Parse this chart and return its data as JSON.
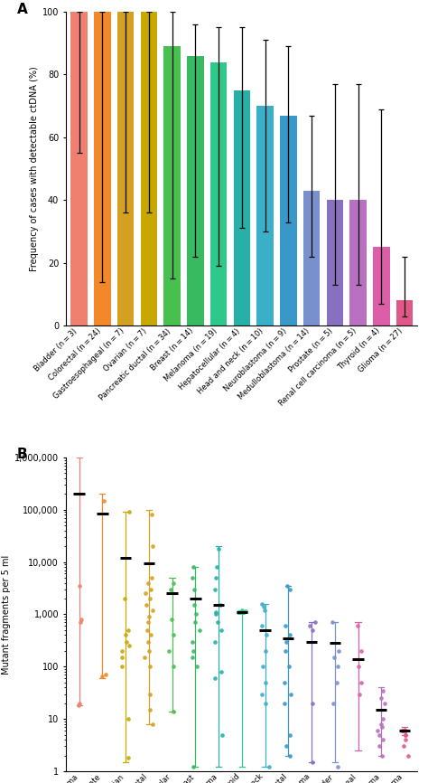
{
  "panel_A": {
    "categories": [
      "Bladder (n = 3)",
      "Colorectal (n = 24)",
      "Gastroesophageal (n = 7)",
      "Ovarian (n = 7)",
      "Pancreatic ductal (n = 34)",
      "Breast (n = 14)",
      "Melanoma (n = 19)",
      "Hepatocellular (n = 4)",
      "Head and neck (n = 10)",
      "Neuroblastoma (n = 9)",
      "Medulloblastoma (n = 14)",
      "Prostate (n = 5)",
      "Renal cell carcinoma (n = 5)",
      "Thyroid (n = 4)",
      "Glioma (n = 27)"
    ],
    "values": [
      100,
      100,
      100,
      100,
      89,
      86,
      84,
      75,
      70,
      67,
      43,
      40,
      40,
      25,
      8
    ],
    "errors_low": [
      55,
      14,
      36,
      36,
      15,
      22,
      19,
      31,
      30,
      33,
      22,
      13,
      13,
      7,
      3
    ],
    "errors_high": [
      100,
      100,
      100,
      100,
      100,
      96,
      95,
      95,
      91,
      89,
      67,
      77,
      77,
      69,
      22
    ],
    "colors": [
      "#EF8070",
      "#F28828",
      "#D4A020",
      "#C8A800",
      "#48C050",
      "#38BA60",
      "#2DC88A",
      "#25B0A8",
      "#3AAFC8",
      "#3898C8",
      "#7890CC",
      "#8870C0",
      "#B870C0",
      "#DC5EA8",
      "#E05888"
    ],
    "ylabel": "Frequency of cases with detectable ctDNA (%)",
    "ylim": [
      0,
      100
    ],
    "yticks": [
      0,
      20,
      40,
      60,
      80,
      100
    ]
  },
  "panel_B": {
    "categories": [
      "Neuroblastoma",
      "Prostate",
      "Ovarian",
      "Colorectal",
      "Hepatocellular",
      "Breast",
      "Melanoma",
      "Thyroid",
      "Head and neck",
      "Pancreatic ductal",
      "Renal cell carcinoma",
      "Bladder",
      "Gastroesophageal",
      "Medulloblastoma",
      "Glioma"
    ],
    "colors": [
      "#EF8070",
      "#F28828",
      "#C8A800",
      "#D4A020",
      "#48C050",
      "#38BA60",
      "#25B0A8",
      "#2DC88A",
      "#3AAFC8",
      "#3898C8",
      "#8870C0",
      "#7890CC",
      "#DC5EA8",
      "#B870C0",
      "#E05888"
    ],
    "medians": [
      200000,
      85000,
      12000,
      9500,
      2500,
      2000,
      1500,
      1100,
      500,
      350,
      300,
      280,
      140,
      15,
      6
    ],
    "error_low": [
      18,
      60,
      1.5,
      8,
      14,
      1.2,
      1.2,
      1.2,
      1.2,
      2,
      1.5,
      1.5,
      2.5,
      2,
      5
    ],
    "error_high": [
      1000000,
      200000,
      90000,
      100000,
      5000,
      8000,
      20000,
      1200,
      1600,
      3500,
      700,
      700,
      700,
      40,
      7
    ],
    "dot_data": [
      [
        3500,
        800,
        700,
        20,
        18
      ],
      [
        150000,
        65,
        70
      ],
      [
        90000,
        2000,
        500,
        400,
        300,
        250,
        200,
        150,
        100,
        10,
        1.8
      ],
      [
        80000,
        20000,
        5000,
        4000,
        3000,
        2500,
        2000,
        1500,
        1200,
        900,
        700,
        500,
        400,
        300,
        200,
        150,
        100,
        30,
        15,
        8
      ],
      [
        4000,
        3000,
        800,
        400,
        200,
        100,
        14
      ],
      [
        8000,
        5000,
        3000,
        1500,
        1000,
        700,
        500,
        300,
        200,
        150,
        100,
        1.2
      ],
      [
        18000,
        8000,
        5000,
        3000,
        1500,
        1100,
        1000,
        700,
        500,
        300,
        80,
        60,
        5
      ],
      [
        1200,
        1150,
        1100,
        1100,
        1100,
        1100,
        1100,
        1100
      ],
      [
        1600,
        1400,
        1200,
        600,
        400,
        200,
        100,
        50,
        30,
        20,
        1.2
      ],
      [
        3500,
        3000,
        600,
        400,
        300,
        200,
        100,
        50,
        30,
        20,
        5,
        3,
        2
      ],
      [
        700,
        600,
        500,
        20,
        1.5
      ],
      [
        700,
        200,
        150,
        100,
        50,
        20,
        1.2
      ],
      [
        600,
        200,
        100,
        50,
        30
      ],
      [
        35,
        25,
        20,
        10,
        8,
        7,
        6,
        5,
        4,
        3,
        2
      ],
      [
        6,
        6,
        6,
        6,
        6,
        5,
        5,
        4,
        3,
        2
      ]
    ],
    "ylabel": "Mutant fragments per 5 ml",
    "ylim": [
      1,
      1000000
    ]
  }
}
